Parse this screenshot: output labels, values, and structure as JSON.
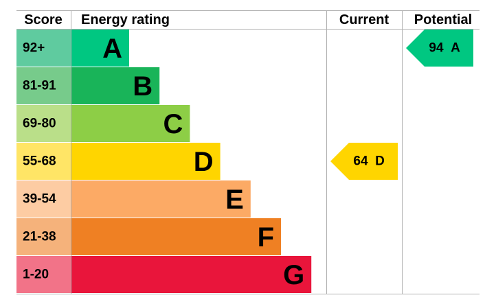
{
  "header": {
    "score": "Score",
    "energy_rating": "Energy rating",
    "current": "Current",
    "potential": "Potential"
  },
  "bands": [
    {
      "score": "92+",
      "letter": "A",
      "color": "#00c781",
      "score_color": "#5fcb9f"
    },
    {
      "score": "81-91",
      "letter": "B",
      "color": "#19b459",
      "score_color": "#77cb8b"
    },
    {
      "score": "69-80",
      "letter": "C",
      "color": "#8dce46",
      "score_color": "#badf89"
    },
    {
      "score": "55-68",
      "letter": "D",
      "color": "#ffd500",
      "score_color": "#ffe566"
    },
    {
      "score": "39-54",
      "letter": "E",
      "color": "#fcaa65",
      "score_color": "#fdcca3"
    },
    {
      "score": "21-38",
      "letter": "F",
      "color": "#ef8023",
      "score_color": "#f5b27b"
    },
    {
      "score": "1-20",
      "letter": "G",
      "color": "#e9153b",
      "score_color": "#f27388"
    }
  ],
  "current": {
    "value": 64,
    "letter": "D"
  },
  "potential": {
    "value": 94,
    "letter": "A"
  }
}
